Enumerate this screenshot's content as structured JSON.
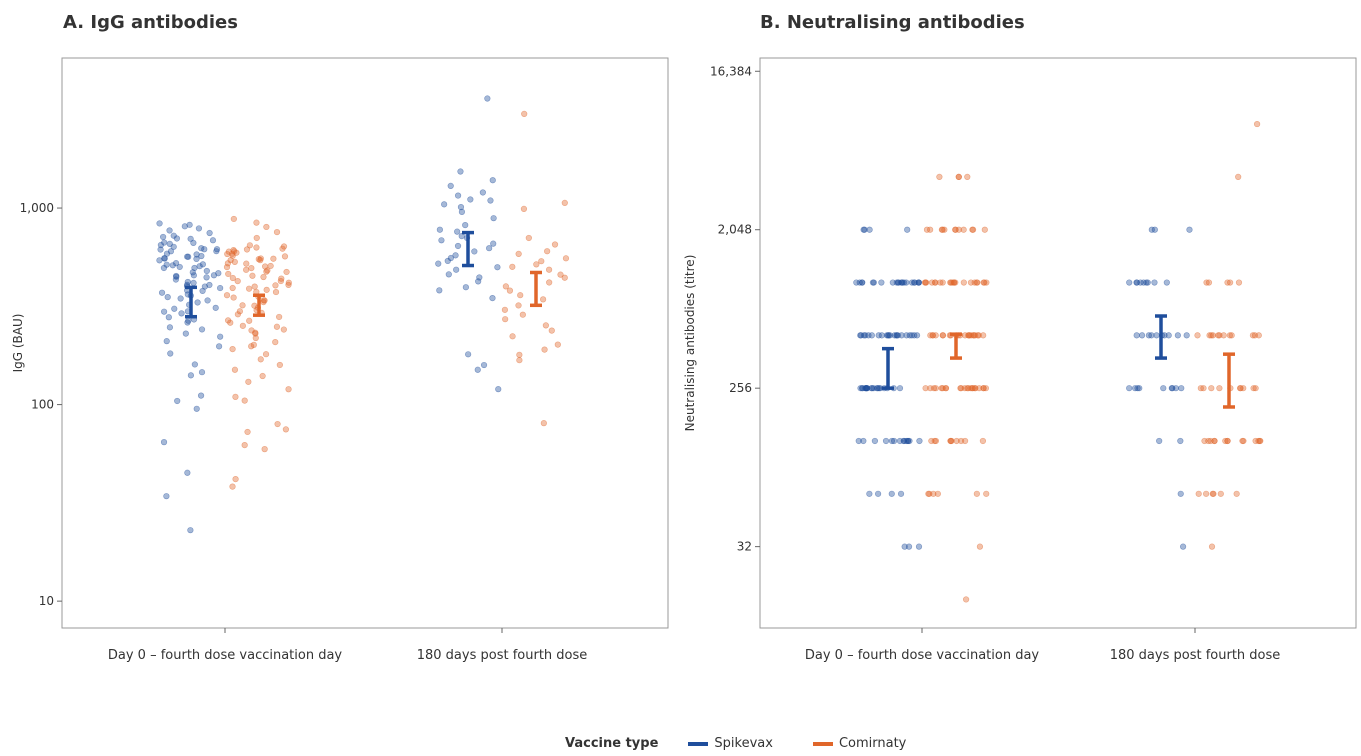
{
  "chart_data": [
    {
      "panel": "A",
      "type": "scatter",
      "title": "A. IgG antibodies",
      "ylabel": "IgG (BAU)",
      "xlabel": "",
      "yscale": "log10",
      "ylim": [
        7.3,
        5800
      ],
      "yticks": [
        10,
        100,
        1000
      ],
      "ytick_labels": [
        "10",
        "100",
        "1,000"
      ],
      "categories": [
        "Day 0 – fourth dose vaccination day",
        "180 days post fourth dose"
      ],
      "series": [
        {
          "name": "Spikevax",
          "color": "#1f4e9c",
          "groups": [
            {
              "category": "Day 0 – fourth dose vaccination day",
              "gmt": 335,
              "ci_low": 280,
              "ci_high": 395,
              "points": [
                23,
                34,
                45,
                65,
                95,
                105,
                110,
                140,
                145,
                160,
                180,
                200,
                210,
                220,
                230,
                240,
                250,
                260,
                270,
                280,
                290,
                300,
                310,
                320,
                330,
                340,
                350,
                360,
                370,
                380,
                390,
                400,
                410,
                420,
                430,
                440,
                450,
                460,
                470,
                480,
                490,
                500,
                510,
                520,
                530,
                540,
                550,
                560,
                570,
                580,
                590,
                600,
                610,
                620,
                630,
                640,
                650,
                660,
                670,
                680,
                690,
                700,
                710,
                720,
                740,
                760,
                780,
                800,
                820,
                840,
                300,
                350,
                400,
                450,
                500,
                550,
                600,
                650,
                380,
                420,
                470,
                520,
                570,
                620,
                270,
                310,
                360,
                410,
                460,
                510,
                560
              ]
            },
            {
              "category": "180 days post fourth dose",
              "gmt": 600,
              "ci_low": 510,
              "ci_high": 750,
              "points": [
                120,
                150,
                160,
                180,
                350,
                380,
                400,
                420,
                440,
                460,
                480,
                500,
                520,
                540,
                560,
                580,
                600,
                620,
                640,
                660,
                680,
                700,
                720,
                750,
                780,
                820,
                880,
                950,
                1000,
                1050,
                1080,
                1100,
                1150,
                1200,
                1300,
                1400,
                1550,
                3600
              ]
            }
          ]
        },
        {
          "name": "Comirnaty",
          "color": "#e0662a",
          "groups": [
            {
              "category": "Day 0 – fourth dose vaccination day",
              "gmt": 318,
              "ci_low": 285,
              "ci_high": 360,
              "points": [
                38,
                42,
                60,
                62,
                72,
                75,
                80,
                105,
                110,
                120,
                130,
                140,
                150,
                160,
                170,
                180,
                190,
                200,
                210,
                220,
                230,
                240,
                250,
                260,
                270,
                280,
                290,
                300,
                310,
                320,
                330,
                340,
                350,
                360,
                370,
                380,
                390,
                400,
                410,
                420,
                430,
                440,
                450,
                460,
                470,
                480,
                490,
                500,
                510,
                520,
                530,
                540,
                550,
                560,
                570,
                580,
                590,
                600,
                610,
                620,
                630,
                640,
                650,
                700,
                750,
                800,
                850,
                880,
                200,
                250,
                300,
                350,
                400,
                450,
                500,
                550,
                600,
                230,
                270,
                320,
                370,
                420,
                470,
                520,
                570,
                620,
                240,
                290,
                340,
                390,
                440,
                490,
                540,
                590
              ]
            },
            {
              "category": "180 days post fourth dose",
              "gmt": 385,
              "ci_low": 320,
              "ci_high": 470,
              "points": [
                80,
                170,
                180,
                190,
                200,
                220,
                240,
                250,
                270,
                290,
                300,
                320,
                340,
                360,
                380,
                400,
                420,
                440,
                460,
                480,
                500,
                520,
                540,
                560,
                580,
                600,
                650,
                700,
                1000,
                1050,
                3000
              ]
            }
          ]
        }
      ]
    },
    {
      "panel": "B",
      "type": "scatter",
      "title": "B. Neutralising antibodies",
      "ylabel": "Neutralising antibodies (titre)",
      "xlabel": "",
      "yscale": "log2",
      "ylim": [
        11,
        19500
      ],
      "yticks": [
        32,
        256,
        2048,
        16384
      ],
      "ytick_labels": [
        "32",
        "256",
        "2,048",
        "16,384"
      ],
      "categories": [
        "Day 0 – fourth dose vaccination day",
        "180 days post fourth dose"
      ],
      "series": [
        {
          "name": "Spikevax",
          "color": "#1f4e9c",
          "groups": [
            {
              "category": "Day 0 – fourth dose vaccination day",
              "gmt": 330,
              "ci_low": 256,
              "ci_high": 430,
              "levels": [
                [
                  32,
                  3
                ],
                [
                  64,
                  4
                ],
                [
                  128,
                  14
                ],
                [
                  256,
                  20
                ],
                [
                  512,
                  22
                ],
                [
                  1024,
                  22
                ],
                [
                  2048,
                  4
                ]
              ]
            },
            {
              "category": "180 days post fourth dose",
              "gmt": 500,
              "ci_low": 380,
              "ci_high": 660,
              "levels": [
                [
                  32,
                  1
                ],
                [
                  64,
                  1
                ],
                [
                  128,
                  2
                ],
                [
                  256,
                  9
                ],
                [
                  512,
                  10
                ],
                [
                  1024,
                  9
                ],
                [
                  2048,
                  3
                ]
              ]
            }
          ]
        },
        {
          "name": "Comirnaty",
          "color": "#e0662a",
          "groups": [
            {
              "category": "Day 0 – fourth dose vaccination day",
              "gmt": 440,
              "ci_low": 380,
              "ci_high": 520,
              "levels": [
                [
                  16,
                  1
                ],
                [
                  32,
                  1
                ],
                [
                  64,
                  6
                ],
                [
                  128,
                  10
                ],
                [
                  256,
                  22
                ],
                [
                  512,
                  22
                ],
                [
                  1024,
                  22
                ],
                [
                  2048,
                  12
                ],
                [
                  4096,
                  4
                ]
              ]
            },
            {
              "category": "180 days post fourth dose",
              "gmt": 255,
              "ci_low": 200,
              "ci_high": 400,
              "levels": [
                [
                  32,
                  1
                ],
                [
                  64,
                  6
                ],
                [
                  128,
                  14
                ],
                [
                  256,
                  10
                ],
                [
                  512,
                  12
                ],
                [
                  1024,
                  5
                ],
                [
                  4096,
                  1
                ],
                [
                  8192,
                  1
                ]
              ]
            }
          ]
        }
      ]
    }
  ],
  "xtick_labels": [
    "Day 0 – fourth dose vaccination day",
    "180 days post fourth dose"
  ],
  "legend": {
    "title": "Vaccine type",
    "items": [
      {
        "label": "Spikevax",
        "color": "#1f4e9c"
      },
      {
        "label": "Comirnaty",
        "color": "#e0662a"
      }
    ]
  }
}
